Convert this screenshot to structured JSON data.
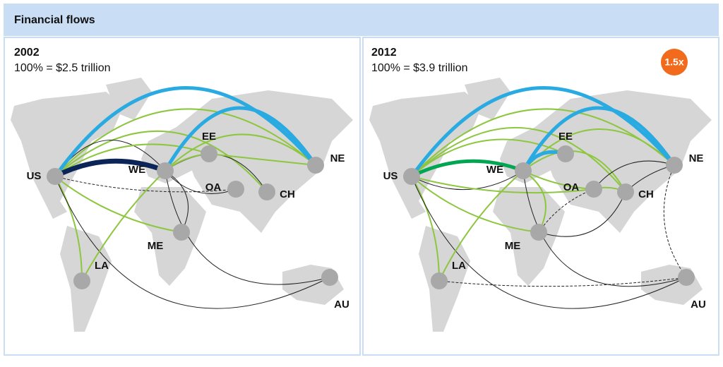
{
  "header": {
    "title": "Financial flows"
  },
  "panels": [
    {
      "year": "2002",
      "total": "100% = $2.5 trillion",
      "nodes": [
        {
          "label": "US"
        },
        {
          "label": "WE"
        },
        {
          "label": "EE"
        },
        {
          "label": "OA"
        },
        {
          "label": "CH"
        },
        {
          "label": "NE"
        },
        {
          "label": "ME"
        },
        {
          "label": "LA"
        },
        {
          "label": "AU"
        }
      ]
    },
    {
      "year": "2012",
      "total": "100% = $3.9 trillion",
      "badge": "1.5x",
      "nodes": [
        {
          "label": "US"
        },
        {
          "label": "WE"
        },
        {
          "label": "EE"
        },
        {
          "label": "OA"
        },
        {
          "label": "CH"
        },
        {
          "label": "NE"
        },
        {
          "label": "ME"
        },
        {
          "label": "LA"
        },
        {
          "label": "AU"
        }
      ]
    }
  ]
}
